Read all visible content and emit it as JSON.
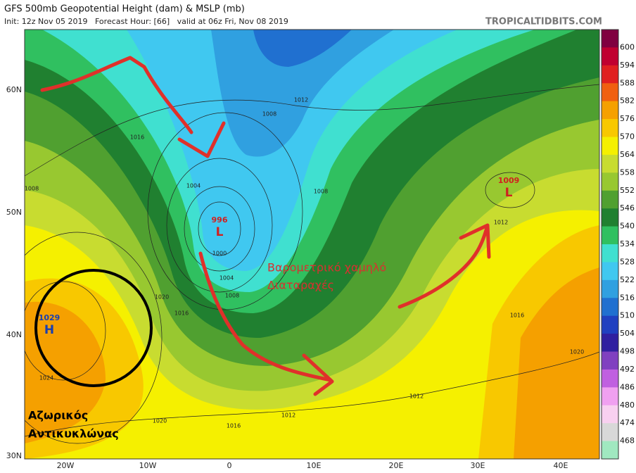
{
  "header": {
    "title": "GFS 500mb Geopotential Height (dam) & MSLP (mb)",
    "subtitle": "Init: 12z Nov 05 2019   Forecast Hour: [66]   valid at 06z Fri, Nov 08 2019",
    "source": "TROPICALTIDBITS.COM"
  },
  "colorbar": {
    "levels": [
      600,
      594,
      588,
      582,
      576,
      570,
      564,
      558,
      552,
      546,
      540,
      534,
      528,
      522,
      516,
      510,
      504,
      498,
      492,
      486,
      480,
      474,
      468
    ],
    "colors": [
      "#800040",
      "#c00030",
      "#e02020",
      "#f06010",
      "#f5a000",
      "#f8c800",
      "#f5f000",
      "#c8dc30",
      "#98c830",
      "#50a030",
      "#208030",
      "#30c060",
      "#40e0d0",
      "#40c8f0",
      "#30a0e0",
      "#2070d0",
      "#2040c0",
      "#3020a0",
      "#8040c0",
      "#c060e0",
      "#f0a0f0",
      "#f8d0f0",
      "#d8d8d8",
      "#a0e8c0"
    ]
  },
  "latitude_labels": [
    "60N",
    "50N",
    "40N",
    "30N"
  ],
  "longitude_labels": [
    "20W",
    "10W",
    "0",
    "10E",
    "20E",
    "30E",
    "40E"
  ],
  "pressure_centers": [
    {
      "value": "1029",
      "symbol": "H",
      "color": "#1a3fb0"
    },
    {
      "value": "996",
      "symbol": "L",
      "color": "#d02020"
    },
    {
      "value": "1009",
      "symbol": "L",
      "color": "#d02020"
    }
  ],
  "contour_labels": [
    "1016",
    "1008",
    "1012",
    "1008",
    "1004",
    "1000",
    "1004",
    "1008",
    "1020",
    "1016",
    "1012",
    "1016",
    "1020",
    "1024",
    "1020",
    "1016",
    "1012",
    "1012",
    "1008"
  ],
  "annotations": {
    "low": [
      "Βαρομετρικό χαμηλό",
      "Διαταραχές"
    ],
    "high": [
      "Αζωρικός",
      "Αντικυκλώνας"
    ]
  }
}
